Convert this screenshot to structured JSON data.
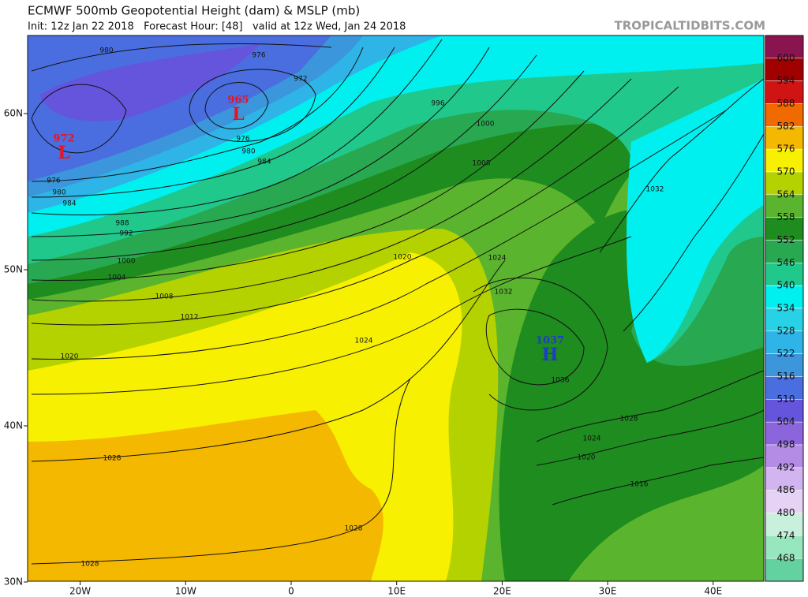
{
  "header": {
    "title": "ECMWF 500mb Geopotential Height (dam) & MSLP (mb)",
    "subtitle": "Init: 12z Jan 22 2018   Forecast Hour: [48]   valid at 12z Wed, Jan 24 2018",
    "source": "TROPICALTIDBITS.COM"
  },
  "map": {
    "lon_ticks": [
      {
        "value": -20,
        "label": "20W"
      },
      {
        "value": -10,
        "label": "10W"
      },
      {
        "value": 0,
        "label": "0"
      },
      {
        "value": 10,
        "label": "10E"
      },
      {
        "value": 20,
        "label": "20E"
      },
      {
        "value": 30,
        "label": "30E"
      },
      {
        "value": 40,
        "label": "40E"
      }
    ],
    "lat_ticks": [
      {
        "value": 60,
        "label": "60N"
      },
      {
        "value": 50,
        "label": "50N"
      },
      {
        "value": 40,
        "label": "40N"
      },
      {
        "value": 30,
        "label": "30N"
      }
    ],
    "isobar_labels": [
      980,
      976,
      972,
      976,
      980,
      984,
      976,
      980,
      984,
      988,
      992,
      1000,
      1004,
      1008,
      1012,
      1020,
      996,
      1000,
      1008,
      1032,
      1020,
      1024,
      1032,
      1024,
      1036,
      1028,
      1024,
      1020,
      1016,
      1028,
      1028,
      1028
    ],
    "pressure_centers": [
      {
        "value": 972,
        "symbol": "L",
        "color": "#e8141e"
      },
      {
        "value": 965,
        "symbol": "L",
        "color": "#e8141e"
      },
      {
        "value": 1037,
        "symbol": "H",
        "color": "#1e3cc8"
      }
    ]
  },
  "colorbar": {
    "levels": [
      600,
      594,
      588,
      582,
      576,
      570,
      564,
      558,
      552,
      546,
      540,
      534,
      528,
      522,
      516,
      510,
      504,
      498,
      492,
      486,
      480,
      474,
      468
    ],
    "colors": [
      "#8a1450",
      "#a00000",
      "#d01414",
      "#f06a00",
      "#f5b800",
      "#f7f000",
      "#b4d200",
      "#5ab42d",
      "#1e8c1e",
      "#28a850",
      "#20c88c",
      "#00f0f0",
      "#28d2e6",
      "#2eb4e6",
      "#3c96dc",
      "#4a6ee0",
      "#6455dc",
      "#8c64dc",
      "#b48ce6",
      "#d2b4f0",
      "#e6d2f5",
      "#c8f0dc",
      "#96e6be",
      "#64d2a0"
    ]
  }
}
